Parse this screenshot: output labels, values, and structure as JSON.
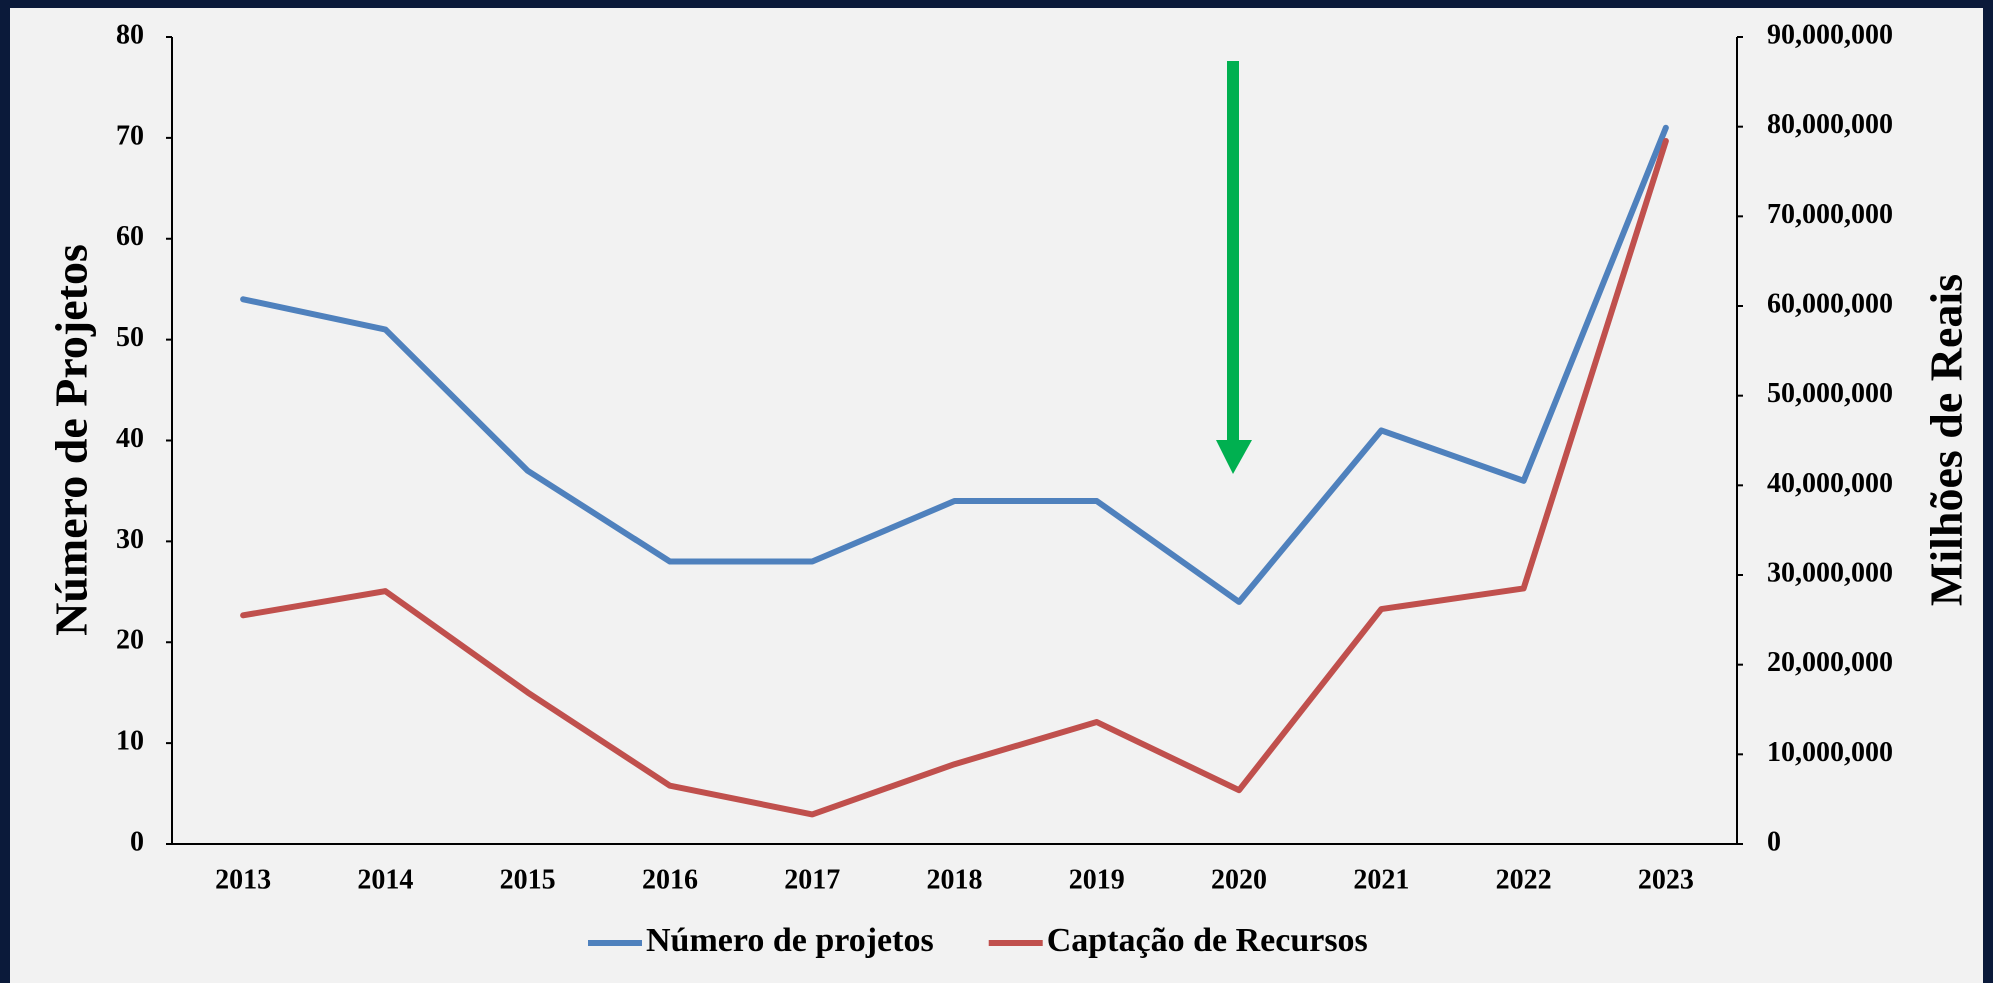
{
  "chart_data": {
    "type": "line",
    "categories": [
      "2013",
      "2014",
      "2015",
      "2016",
      "2017",
      "2018",
      "2019",
      "2020",
      "2021",
      "2022",
      "2023"
    ],
    "series": [
      {
        "name": "Número de projetos",
        "color": "#4f81bd",
        "values": [
          54,
          51,
          37,
          28,
          28,
          34,
          34,
          24,
          41,
          36,
          71
        ]
      },
      {
        "name": "Captação de Recursos",
        "color": "#c0504d",
        "axis": "y2",
        "values": [
          25500000,
          28200000,
          16900000,
          6500000,
          3300000,
          8900000,
          13600000,
          6000000,
          26200000,
          28500000,
          78400000
        ]
      }
    ],
    "ylabel": "Número de Projetos",
    "y2label": "Milhões de Reais",
    "ylim": [
      0,
      80
    ],
    "yticks": [
      0,
      10,
      20,
      30,
      40,
      50,
      60,
      70,
      80
    ],
    "y2lim": [
      0,
      90000000
    ],
    "y2ticks": [
      0,
      {
        "value": 10000000,
        "label": "10,000,000"
      },
      {
        "value": 20000000,
        "label": "20,000,000"
      },
      {
        "value": 30000000,
        "label": "30,000,000"
      },
      {
        "value": 40000000,
        "label": "40,000,000"
      },
      {
        "value": 50000000,
        "label": "50,000,000"
      },
      {
        "value": 60000000,
        "label": "60,000,000"
      },
      {
        "value": 70000000,
        "label": "70,000,000"
      },
      {
        "value": 80000000,
        "label": "80,000,000"
      },
      {
        "value": 90000000,
        "label": "90,000,000"
      }
    ],
    "grid": false,
    "legend": "bottom"
  }
}
